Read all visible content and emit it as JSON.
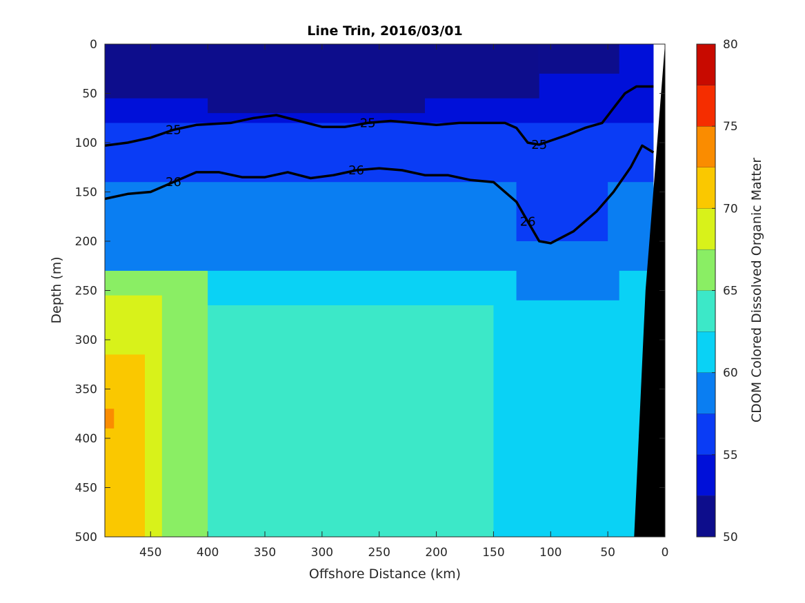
{
  "chart_data": {
    "type": "heatmap",
    "title": "Line Trin, 2016/03/01",
    "xlabel": "Offshore Distance (km)",
    "ylabel": "Depth (m)",
    "colorbar_label": "CDOM Colored Dissolved Organic Matter",
    "xlim": [
      490,
      0
    ],
    "ylim": [
      0,
      500
    ],
    "x_ticks": [
      450,
      400,
      350,
      300,
      250,
      200,
      150,
      100,
      50,
      0
    ],
    "y_ticks": [
      0,
      50,
      100,
      150,
      200,
      250,
      300,
      350,
      400,
      450,
      500
    ],
    "colorbar_range": [
      50,
      80
    ],
    "colorbar_ticks": [
      50,
      55,
      60,
      65,
      70,
      75,
      80
    ],
    "colorbar_levels": [
      50,
      52.5,
      55,
      57.5,
      60,
      62.5,
      65,
      67.5,
      70,
      72.5,
      75,
      77.5,
      80
    ],
    "colorbar_colors": [
      "#0d0d8c",
      "#0010d9",
      "#0a3cf5",
      "#0a7ef2",
      "#0ad2f5",
      "#3ce8c8",
      "#8aee64",
      "#d8f21a",
      "#fac800",
      "#fa8c00",
      "#f52d00",
      "#c80a00"
    ],
    "density_contours": [
      {
        "level": "25",
        "points": [
          [
            490,
            103
          ],
          [
            470,
            100
          ],
          [
            450,
            95
          ],
          [
            430,
            87
          ],
          [
            410,
            82
          ],
          [
            380,
            80
          ],
          [
            360,
            75
          ],
          [
            340,
            72
          ],
          [
            320,
            78
          ],
          [
            300,
            84
          ],
          [
            280,
            84
          ],
          [
            260,
            80
          ],
          [
            240,
            78
          ],
          [
            220,
            80
          ],
          [
            200,
            82
          ],
          [
            180,
            80
          ],
          [
            160,
            80
          ],
          [
            140,
            80
          ],
          [
            130,
            85
          ],
          [
            120,
            100
          ],
          [
            110,
            102
          ],
          [
            100,
            98
          ],
          [
            85,
            92
          ],
          [
            70,
            85
          ],
          [
            55,
            80
          ],
          [
            45,
            65
          ],
          [
            35,
            50
          ],
          [
            25,
            43
          ],
          [
            10,
            43
          ]
        ]
      },
      {
        "level": "26",
        "points": [
          [
            490,
            157
          ],
          [
            470,
            152
          ],
          [
            450,
            150
          ],
          [
            430,
            140
          ],
          [
            410,
            130
          ],
          [
            390,
            130
          ],
          [
            370,
            135
          ],
          [
            350,
            135
          ],
          [
            330,
            130
          ],
          [
            310,
            136
          ],
          [
            290,
            133
          ],
          [
            270,
            128
          ],
          [
            250,
            126
          ],
          [
            230,
            128
          ],
          [
            210,
            133
          ],
          [
            190,
            133
          ],
          [
            170,
            138
          ],
          [
            150,
            140
          ],
          [
            130,
            160
          ],
          [
            120,
            180
          ],
          [
            110,
            200
          ],
          [
            100,
            202
          ],
          [
            80,
            190
          ],
          [
            60,
            170
          ],
          [
            45,
            150
          ],
          [
            30,
            125
          ],
          [
            20,
            103
          ],
          [
            10,
            110
          ]
        ]
      }
    ],
    "colored_regions": [
      {
        "x_from": 490,
        "x_to": 10,
        "depth_from": 0,
        "depth_to": 500,
        "level": 60
      },
      {
        "x_from": 490,
        "x_to": 150,
        "depth_from": 265,
        "depth_to": 500,
        "level": 62.5
      },
      {
        "x_from": 490,
        "x_to": 400,
        "depth_from": 230,
        "depth_to": 500,
        "level": 65
      },
      {
        "x_from": 490,
        "x_to": 440,
        "depth_from": 255,
        "depth_to": 500,
        "level": 67.5
      },
      {
        "x_from": 490,
        "x_to": 455,
        "depth_from": 315,
        "depth_to": 500,
        "level": 70
      },
      {
        "x_from": 490,
        "x_to": 482,
        "depth_from": 370,
        "depth_to": 390,
        "level": 72.5
      },
      {
        "x_from": 490,
        "x_to": 10,
        "depth_from": 0,
        "depth_to": 230,
        "level": 57.5
      },
      {
        "x_from": 130,
        "x_to": 40,
        "depth_from": 200,
        "depth_to": 260,
        "level": 57.5
      },
      {
        "x_from": 490,
        "x_to": 10,
        "depth_from": 0,
        "depth_to": 140,
        "level": 55
      },
      {
        "x_from": 130,
        "x_to": 50,
        "depth_from": 120,
        "depth_to": 200,
        "level": 55
      },
      {
        "x_from": 490,
        "x_to": 10,
        "depth_from": 0,
        "depth_to": 80,
        "level": 52.5
      },
      {
        "x_from": 490,
        "x_to": 110,
        "depth_from": 0,
        "depth_to": 55,
        "level": 50
      },
      {
        "x_from": 400,
        "x_to": 210,
        "depth_from": 0,
        "depth_to": 70,
        "level": 50
      },
      {
        "x_from": 110,
        "x_to": 40,
        "depth_from": 0,
        "depth_to": 30,
        "level": 50
      }
    ],
    "topography": {
      "color": "#000000",
      "points": [
        [
          0,
          0
        ],
        [
          0,
          500
        ],
        [
          27,
          500
        ],
        [
          17,
          250
        ],
        [
          0,
          0
        ]
      ]
    },
    "grid": false,
    "legend": "colorbar-right"
  }
}
